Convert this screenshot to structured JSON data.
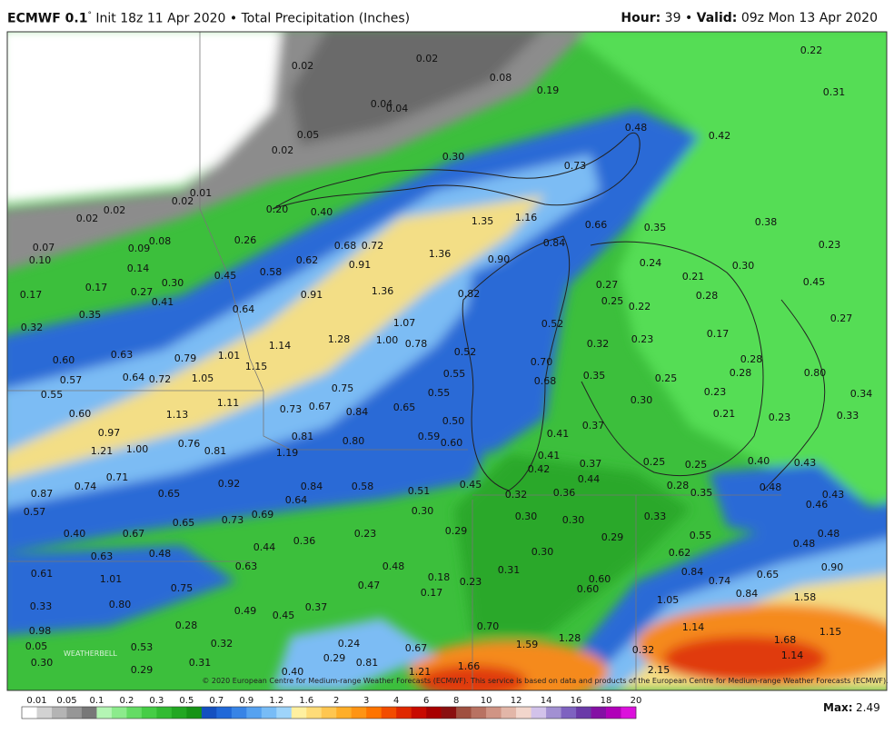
{
  "header": {
    "model": "ECMWF 0.1",
    "degree": "°",
    "init": "Init 18z 11 Apr 2020",
    "bullet": "•",
    "product": "Total Precipitation (Inches)",
    "hour_label": "Hour:",
    "hour": "39",
    "valid_label": "Valid:",
    "valid": "09z Mon 13 Apr 2020"
  },
  "map": {
    "copyright": "© 2020 European Centre for Medium-range Weather Forecasts (ECMWF). This service is based on data and products of the European Centre for Medium-range Weather Forecasts (ECMWF).",
    "logo": "WEATHERBELL",
    "labels": [
      "0.02",
      "0.02",
      "0.08",
      "0.19",
      "0.22",
      "0.31",
      "0.04",
      "0.04",
      "0.05",
      "0.02",
      "0.48",
      "0.42",
      "0.30",
      "0.73",
      "0.01",
      "0.02",
      "0.02",
      "0.02",
      "0.20",
      "0.40",
      "1.35",
      "1.16",
      "0.66",
      "0.35",
      "0.38",
      "0.08",
      "0.26",
      "0.68",
      "0.72",
      "1.36",
      "0.84",
      "0.23",
      "0.07",
      "0.10",
      "0.09",
      "0.14",
      "0.62",
      "0.91",
      "0.90",
      "0.24",
      "0.30",
      "0.45",
      "0.58",
      "0.21",
      "0.45",
      "0.17",
      "0.17",
      "0.27",
      "0.30",
      "0.41",
      "0.91",
      "1.36",
      "0.82",
      "0.27",
      "0.25",
      "0.22",
      "0.28",
      "0.35",
      "0.64",
      "1.07",
      "0.52",
      "0.27",
      "0.32",
      "0.17",
      "0.23",
      "1.14",
      "1.28",
      "1.00",
      "0.78",
      "0.32",
      "0.63",
      "0.79",
      "1.01",
      "0.52",
      "0.60",
      "0.70",
      "0.28",
      "1.15",
      "0.55",
      "0.28",
      "0.80",
      "0.57",
      "0.64",
      "0.72",
      "1.05",
      "0.68",
      "0.35",
      "0.25",
      "0.75",
      "0.55",
      "0.23",
      "0.55",
      "0.34",
      "0.30",
      "1.11",
      "0.73",
      "0.67",
      "0.84",
      "0.65",
      "0.21",
      "0.23",
      "0.33",
      "0.60",
      "1.13",
      "0.50",
      "0.37",
      "0.97",
      "0.41",
      "0.81",
      "0.80",
      "0.59",
      "0.60",
      "0.76",
      "0.81",
      "1.21",
      "1.00",
      "1.19",
      "0.41",
      "0.37",
      "0.25",
      "0.25",
      "0.40",
      "0.43",
      "0.42",
      "0.71",
      "0.92",
      "0.44",
      "0.74",
      "0.84",
      "0.58",
      "0.51",
      "0.45",
      "0.28",
      "0.35",
      "0.48",
      "0.87",
      "0.65",
      "0.32",
      "0.36",
      "0.64",
      "0.43",
      "0.46",
      "0.57",
      "0.30",
      "0.69",
      "0.73",
      "0.30",
      "0.30",
      "0.33",
      "0.65",
      "0.40",
      "0.67",
      "0.23",
      "0.29",
      "0.29",
      "0.55",
      "0.48",
      "0.36",
      "0.48",
      "0.44",
      "0.48",
      "0.63",
      "0.30",
      "0.62",
      "0.90",
      "0.63",
      "0.48",
      "0.31",
      "0.61",
      "1.01",
      "0.18",
      "0.84",
      "0.74",
      "0.65",
      "0.60",
      "0.47",
      "0.23",
      "0.75",
      "0.17",
      "0.60",
      "0.84",
      "1.58",
      "1.05",
      "0.33",
      "0.80",
      "0.37",
      "0.49",
      "0.45",
      "0.70",
      "1.14",
      "1.15",
      "0.28",
      "1.28",
      "1.68",
      "0.98",
      "0.24",
      "1.59",
      "0.32",
      "0.53",
      "0.67",
      "0.32",
      "1.14",
      "0.81",
      "0.31",
      "0.29",
      "0.29",
      "2.15",
      "0.40",
      "1.21",
      "1.66",
      "0.05",
      "0.30"
    ]
  },
  "colorbar": {
    "labels": [
      "0.01",
      "0.05",
      "0.1",
      "0.2",
      "0.3",
      "0.5",
      "0.7",
      "0.9",
      "1.2",
      "1.6",
      "2",
      "3",
      "4",
      "6",
      "8",
      "10",
      "12",
      "14",
      "16",
      "18",
      "20"
    ],
    "colors": [
      "#ffffff",
      "#d2d2d2",
      "#b4b4b4",
      "#969696",
      "#787878",
      "#b4f5b4",
      "#8ceb8c",
      "#64dc64",
      "#46cd46",
      "#32bb32",
      "#22a722",
      "#169316",
      "#1450c0",
      "#2068d8",
      "#3884e6",
      "#56a2f0",
      "#78bcf6",
      "#9ed4fa",
      "#fff0a0",
      "#ffdc78",
      "#ffc650",
      "#ffae28",
      "#ff9414",
      "#ff7400",
      "#f24c00",
      "#e02800",
      "#c80a00",
      "#a80000",
      "#8a1010",
      "#a05040",
      "#b87262",
      "#d09484",
      "#e2b6a8",
      "#f2d6cc",
      "#d2c2ea",
      "#a290d2",
      "#7e62c0",
      "#6a3aa8",
      "#8410a4",
      "#b000b8",
      "#dc10dc"
    ],
    "max_label": "Max:",
    "max": "2.49"
  }
}
